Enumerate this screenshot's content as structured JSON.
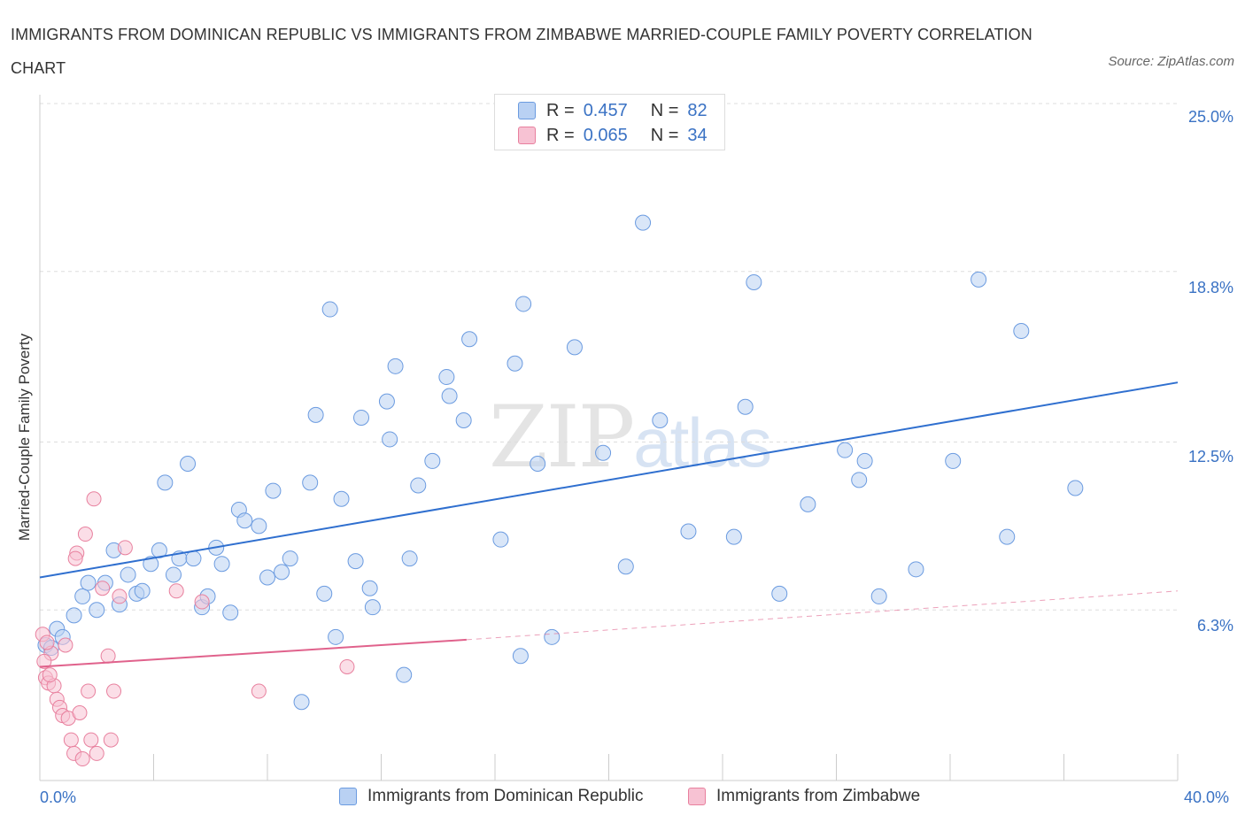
{
  "title": "IMMIGRANTS FROM DOMINICAN REPUBLIC VS IMMIGRANTS FROM ZIMBABWE MARRIED-COUPLE FAMILY POVERTY CORRELATION CHART",
  "source": "Source: ZipAtlas.com",
  "watermark": {
    "zip": "ZIP",
    "atlas": "atlas"
  },
  "legend_top": [
    {
      "r_label": "R =",
      "r_value": "0.457",
      "n_label": "N =",
      "n_value": "82"
    },
    {
      "r_label": "R =",
      "r_value": "0.065",
      "n_label": "N =",
      "n_value": "34"
    }
  ],
  "colors": {
    "blue_fill": "#b9d1f3",
    "blue_stroke": "#6b9be0",
    "blue_line": "#2f6fcf",
    "pink_fill": "#f7c2d3",
    "pink_stroke": "#e8809e",
    "pink_line": "#e0628c",
    "grid": "#dddddd",
    "tick_text": "#3a72c4"
  },
  "chart_data": {
    "type": "scatter",
    "title": "IMMIGRANTS FROM DOMINICAN REPUBLIC VS IMMIGRANTS FROM ZIMBABWE MARRIED-COUPLE FAMILY POVERTY CORRELATION CHART",
    "xlabel": "",
    "ylabel": "Married-Couple Family Poverty",
    "xlim": [
      0,
      40
    ],
    "ylim": [
      0,
      25
    ],
    "x_tick_labels": [
      "0.0%",
      "40.0%"
    ],
    "y_ticks": [
      6.3,
      12.5,
      18.8,
      25.0
    ],
    "y_tick_labels": [
      "6.3%",
      "12.5%",
      "18.8%",
      "25.0%"
    ],
    "grid": true,
    "legend_position": "top-center",
    "series": [
      {
        "name": "Immigrants from Dominican Republic",
        "color": "blue",
        "trend": {
          "x": [
            0,
            40
          ],
          "y": [
            7.5,
            14.7
          ]
        },
        "points": [
          [
            0.2,
            5.0
          ],
          [
            0.4,
            4.9
          ],
          [
            0.6,
            5.6
          ],
          [
            0.8,
            5.3
          ],
          [
            1.2,
            6.1
          ],
          [
            1.5,
            6.8
          ],
          [
            1.7,
            7.3
          ],
          [
            2.0,
            6.3
          ],
          [
            2.3,
            7.3
          ],
          [
            2.6,
            8.5
          ],
          [
            2.8,
            6.5
          ],
          [
            3.1,
            7.6
          ],
          [
            3.4,
            6.9
          ],
          [
            3.6,
            7.0
          ],
          [
            3.9,
            8.0
          ],
          [
            4.2,
            8.5
          ],
          [
            4.4,
            11.0
          ],
          [
            4.7,
            7.6
          ],
          [
            4.9,
            8.2
          ],
          [
            5.2,
            11.7
          ],
          [
            5.4,
            8.2
          ],
          [
            5.7,
            6.4
          ],
          [
            5.9,
            6.8
          ],
          [
            6.2,
            8.6
          ],
          [
            6.4,
            8.0
          ],
          [
            6.7,
            6.2
          ],
          [
            7.0,
            10.0
          ],
          [
            7.2,
            9.6
          ],
          [
            7.7,
            9.4
          ],
          [
            8.0,
            7.5
          ],
          [
            8.2,
            10.7
          ],
          [
            8.5,
            7.7
          ],
          [
            8.8,
            8.2
          ],
          [
            9.2,
            2.9
          ],
          [
            9.5,
            11.0
          ],
          [
            9.7,
            13.5
          ],
          [
            10.0,
            6.9
          ],
          [
            10.2,
            17.4
          ],
          [
            10.4,
            5.3
          ],
          [
            10.6,
            10.4
          ],
          [
            11.1,
            8.1
          ],
          [
            11.3,
            13.4
          ],
          [
            11.6,
            7.1
          ],
          [
            11.7,
            6.4
          ],
          [
            12.2,
            14.0
          ],
          [
            12.3,
            12.6
          ],
          [
            12.5,
            15.3
          ],
          [
            12.8,
            3.9
          ],
          [
            13.0,
            8.2
          ],
          [
            13.3,
            10.9
          ],
          [
            13.8,
            11.8
          ],
          [
            14.3,
            14.9
          ],
          [
            14.4,
            14.2
          ],
          [
            14.9,
            13.3
          ],
          [
            15.1,
            16.3
          ],
          [
            16.2,
            8.9
          ],
          [
            16.7,
            15.4
          ],
          [
            16.9,
            4.6
          ],
          [
            17.0,
            17.6
          ],
          [
            17.5,
            11.7
          ],
          [
            18.0,
            5.3
          ],
          [
            18.8,
            16.0
          ],
          [
            19.8,
            12.1
          ],
          [
            20.6,
            7.9
          ],
          [
            21.2,
            20.6
          ],
          [
            21.8,
            13.3
          ],
          [
            22.8,
            9.2
          ],
          [
            24.4,
            9.0
          ],
          [
            24.8,
            13.8
          ],
          [
            25.1,
            18.4
          ],
          [
            26.0,
            6.9
          ],
          [
            27.0,
            10.2
          ],
          [
            28.3,
            12.2
          ],
          [
            28.8,
            11.1
          ],
          [
            29.0,
            11.8
          ],
          [
            29.5,
            6.8
          ],
          [
            30.8,
            7.8
          ],
          [
            32.1,
            11.8
          ],
          [
            33.0,
            18.5
          ],
          [
            34.0,
            9.0
          ],
          [
            34.5,
            16.6
          ],
          [
            36.4,
            10.8
          ]
        ]
      },
      {
        "name": "Immigrants from Zimbabwe",
        "color": "pink",
        "trend": {
          "x": [
            0,
            15
          ],
          "y": [
            4.2,
            5.2
          ]
        },
        "trend_dashed": {
          "x": [
            15,
            40
          ],
          "y": [
            5.2,
            7.0
          ]
        },
        "points": [
          [
            0.1,
            5.4
          ],
          [
            0.2,
            3.8
          ],
          [
            0.3,
            3.6
          ],
          [
            0.4,
            4.7
          ],
          [
            0.5,
            3.5
          ],
          [
            0.6,
            3.0
          ],
          [
            0.7,
            2.7
          ],
          [
            0.8,
            2.4
          ],
          [
            0.9,
            5.0
          ],
          [
            1.0,
            2.3
          ],
          [
            1.1,
            1.5
          ],
          [
            1.2,
            1.0
          ],
          [
            1.3,
            8.4
          ],
          [
            1.4,
            2.5
          ],
          [
            1.5,
            0.8
          ],
          [
            1.6,
            9.1
          ],
          [
            1.7,
            3.3
          ],
          [
            1.8,
            1.5
          ],
          [
            1.9,
            10.4
          ],
          [
            2.0,
            1.0
          ],
          [
            2.2,
            7.1
          ],
          [
            2.4,
            4.6
          ],
          [
            2.5,
            1.5
          ],
          [
            2.6,
            3.3
          ],
          [
            2.8,
            6.8
          ],
          [
            3.0,
            8.6
          ],
          [
            4.8,
            7.0
          ],
          [
            5.7,
            6.6
          ],
          [
            7.7,
            3.3
          ],
          [
            10.8,
            4.2
          ],
          [
            0.15,
            4.4
          ],
          [
            0.35,
            3.9
          ],
          [
            0.25,
            5.1
          ],
          [
            1.25,
            8.2
          ]
        ]
      }
    ]
  },
  "legend_bottom": [
    {
      "label": "Immigrants from Dominican Republic"
    },
    {
      "label": "Immigrants from Zimbabwe"
    }
  ]
}
